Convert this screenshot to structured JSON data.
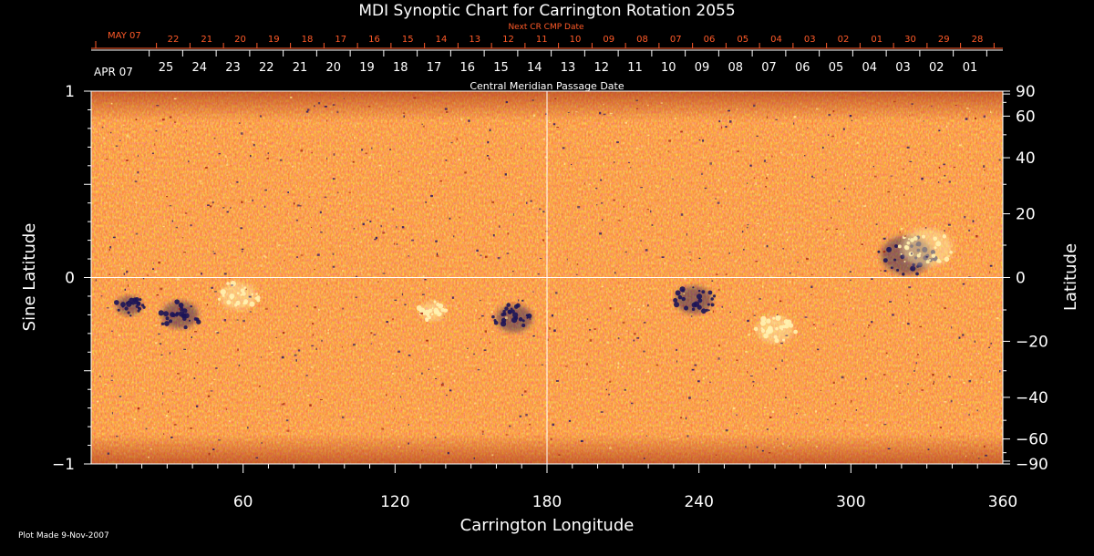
{
  "chart_data": {
    "type": "heatmap",
    "title": "MDI Synoptic Chart for Carrington Rotation 2055",
    "xlabel": "Carrington Longitude",
    "ylabel_left": "Sine Latitude",
    "ylabel_right": "Latitude",
    "xlim": [
      0,
      360
    ],
    "ylim": [
      -1,
      1
    ],
    "x_ticks": [
      60,
      120,
      180,
      240,
      300,
      360
    ],
    "y_ticks_left": [
      {
        "value": 1,
        "label": "1"
      },
      {
        "value": 0,
        "label": "0"
      },
      {
        "value": -1,
        "label": "−1"
      }
    ],
    "y_ticks_right": [
      {
        "value": 90,
        "label": "90"
      },
      {
        "value": 60,
        "label": "60"
      },
      {
        "value": 40,
        "label": "40"
      },
      {
        "value": 20,
        "label": "20"
      },
      {
        "value": 0,
        "label": "0"
      },
      {
        "value": -20,
        "label": "−20"
      },
      {
        "value": -40,
        "label": "−40"
      },
      {
        "value": -60,
        "label": "−60"
      },
      {
        "value": -90,
        "label": "−90"
      }
    ],
    "next_cr_label": "Next CR CMP Date",
    "next_cr_month": "MAY 07",
    "next_cr_dates": [
      "22",
      "21",
      "20",
      "19",
      "18",
      "17",
      "16",
      "15",
      "14",
      "13",
      "12",
      "11",
      "10",
      "09",
      "08",
      "07",
      "06",
      "05",
      "04",
      "03",
      "02",
      "01",
      "30",
      "29",
      "28"
    ],
    "cmp_month": "APR 07",
    "cmp_dates": [
      "25",
      "24",
      "23",
      "22",
      "21",
      "20",
      "19",
      "18",
      "17",
      "16",
      "15",
      "14",
      "13",
      "12",
      "11",
      "10",
      "09",
      "08",
      "07",
      "06",
      "05",
      "04",
      "03",
      "02",
      "01"
    ],
    "cmp_label": "Central Meridian Passage Date",
    "colormap": [
      "#1a1050",
      "#7a1a10",
      "#c83010",
      "#f05a18",
      "#ff8a2a",
      "#ffd070",
      "#fff6c0"
    ],
    "background_color": "#e85a1c",
    "guide_lines": {
      "x": 180,
      "y": 0
    },
    "magnetic_features": [
      {
        "lon": 322,
        "sinlat": 0.12,
        "polarity": "negative",
        "strength": "strong"
      },
      {
        "lon": 330,
        "sinlat": 0.16,
        "polarity": "positive",
        "strength": "strong"
      },
      {
        "lon": 238,
        "sinlat": -0.12,
        "polarity": "negative",
        "strength": "moderate"
      },
      {
        "lon": 270,
        "sinlat": -0.28,
        "polarity": "positive",
        "strength": "moderate"
      },
      {
        "lon": 167,
        "sinlat": -0.22,
        "polarity": "negative",
        "strength": "moderate"
      },
      {
        "lon": 135,
        "sinlat": -0.18,
        "polarity": "positive",
        "strength": "weak"
      },
      {
        "lon": 58,
        "sinlat": -0.1,
        "polarity": "positive",
        "strength": "moderate"
      },
      {
        "lon": 35,
        "sinlat": -0.2,
        "polarity": "negative",
        "strength": "moderate"
      },
      {
        "lon": 15,
        "sinlat": -0.15,
        "polarity": "negative",
        "strength": "weak"
      }
    ]
  },
  "footer": {
    "plot_made": "Plot Made  9-Nov-2007"
  }
}
